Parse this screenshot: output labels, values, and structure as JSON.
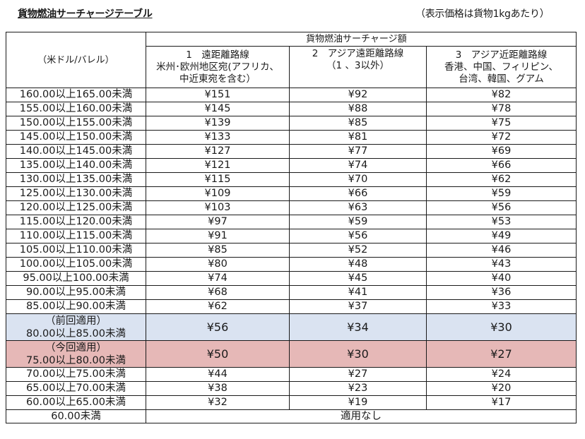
{
  "title": "貨物燃油サーチャージテーブル",
  "note": "（表示価格は貨物1kgあたり）",
  "colors": {
    "previous_row": "#dae3f1",
    "current_row": "#e6b8b7",
    "border": "#1a1a1a"
  },
  "header": {
    "unit": "（米ドル/バレル）",
    "group": "貨物燃油サーチャージ額",
    "columns": [
      {
        "line1": "1　遠距離路線",
        "line2": "米州･欧州地区宛(アフリカ、",
        "line3": "中近東宛を含む）"
      },
      {
        "line1": "2　アジア遠距離路線",
        "line2": "（1 、3以外）",
        "line3": ""
      },
      {
        "line1": "3　アジア近距離路線",
        "line2": "香港、中国、フィリピン、",
        "line3": "台湾、韓国、グアム"
      }
    ]
  },
  "rows": [
    {
      "range": "160.00以上165.00未満",
      "c1": "¥151",
      "c2": "¥92",
      "c3": "¥82"
    },
    {
      "range": "155.00以上160.00未満",
      "c1": "¥145",
      "c2": "¥88",
      "c3": "¥78"
    },
    {
      "range": "150.00以上155.00未満",
      "c1": "¥139",
      "c2": "¥85",
      "c3": "¥75"
    },
    {
      "range": "145.00以上150.00未満",
      "c1": "¥133",
      "c2": "¥81",
      "c3": "¥72"
    },
    {
      "range": "140.00以上145.00未満",
      "c1": "¥127",
      "c2": "¥77",
      "c3": "¥69"
    },
    {
      "range": "135.00以上140.00未満",
      "c1": "¥121",
      "c2": "¥74",
      "c3": "¥66"
    },
    {
      "range": "130.00以上135.00未満",
      "c1": "¥115",
      "c2": "¥70",
      "c3": "¥62"
    },
    {
      "range": "125.00以上130.00未満",
      "c1": "¥109",
      "c2": "¥66",
      "c3": "¥59"
    },
    {
      "range": "120.00以上125.00未満",
      "c1": "¥103",
      "c2": "¥63",
      "c3": "¥56"
    },
    {
      "range": "115.00以上120.00未満",
      "c1": "¥97",
      "c2": "¥59",
      "c3": "¥53"
    },
    {
      "range": "110.00以上115.00未満",
      "c1": "¥91",
      "c2": "¥56",
      "c3": "¥49"
    },
    {
      "range": "105.00以上110.00未満",
      "c1": "¥85",
      "c2": "¥52",
      "c3": "¥46"
    },
    {
      "range": "100.00以上105.00未満",
      "c1": "¥80",
      "c2": "¥48",
      "c3": "¥43"
    },
    {
      "range": "95.00以上100.00未満",
      "c1": "¥74",
      "c2": "¥45",
      "c3": "¥40"
    },
    {
      "range": "90.00以上95.00未満",
      "c1": "¥68",
      "c2": "¥41",
      "c3": "¥36"
    },
    {
      "range": "85.00以上90.00未満",
      "c1": "¥62",
      "c2": "¥37",
      "c3": "¥33"
    },
    {
      "label": "（前回適用）",
      "range": "80.00以上85.00未満",
      "c1": "¥56",
      "c2": "¥34",
      "c3": "¥30"
    },
    {
      "label": "（今回適用）",
      "range": "75.00以上80.00未満",
      "c1": "¥50",
      "c2": "¥30",
      "c3": "¥27"
    },
    {
      "range": "70.00以上75.00未満",
      "c1": "¥44",
      "c2": "¥27",
      "c3": "¥24"
    },
    {
      "range": "65.00以上70.00未満",
      "c1": "¥38",
      "c2": "¥23",
      "c3": "¥20"
    },
    {
      "range": "60.00以上65.00未満",
      "c1": "¥32",
      "c2": "¥19",
      "c3": "¥17"
    }
  ],
  "last_row": {
    "range": "60.00未満",
    "value": "適用なし"
  }
}
